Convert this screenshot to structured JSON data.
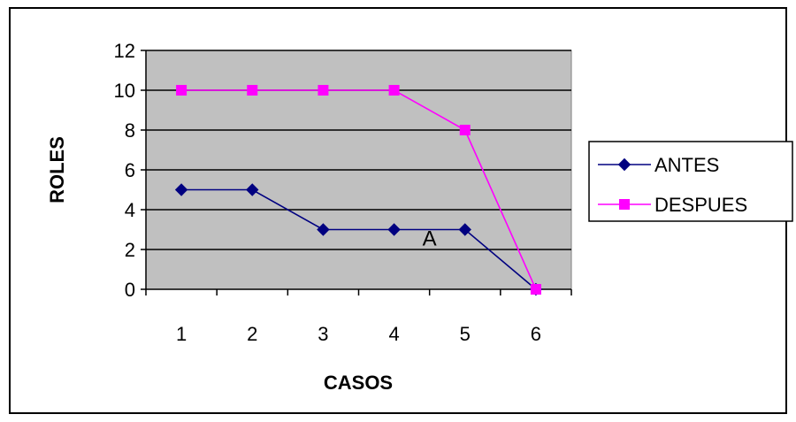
{
  "chart_data": {
    "type": "line",
    "title": "",
    "xlabel": "CASOS",
    "ylabel": "ROLES",
    "categories": [
      "1",
      "2",
      "3",
      "4",
      "5",
      "6"
    ],
    "ylim": [
      0,
      12
    ],
    "yticks": [
      0,
      2,
      4,
      6,
      8,
      10,
      12
    ],
    "grid": true,
    "legend_position": "right",
    "series": [
      {
        "name": "ANTES",
        "values": [
          5,
          5,
          3,
          3,
          3,
          0
        ],
        "color": "#000080",
        "marker": "diamond"
      },
      {
        "name": "DESPUES",
        "values": [
          10,
          10,
          10,
          10,
          8,
          0
        ],
        "color": "#FF00FF",
        "marker": "square"
      }
    ],
    "plot_background": "#C0C0C0",
    "annotations": [
      {
        "text": "A",
        "x": 4.5,
        "y": 2.6
      }
    ]
  }
}
